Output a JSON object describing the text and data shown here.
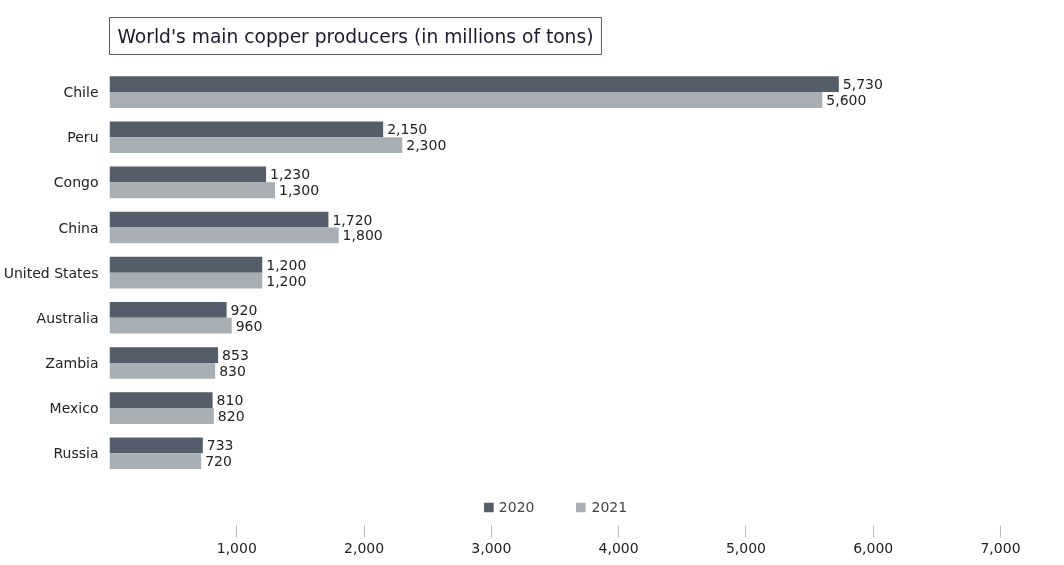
{
  "chart_data": {
    "type": "bar",
    "orientation": "horizontal",
    "title": "World's main copper producers (in millions of tons)",
    "categories": [
      "Chile",
      "Peru",
      "Congo",
      "China",
      "United States",
      "Australia",
      "Zambia",
      "Mexico",
      "Russia"
    ],
    "series": [
      {
        "name": "2020",
        "color": "#545e6b",
        "values": [
          5730,
          2150,
          1230,
          1720,
          1200,
          920,
          853,
          810,
          733
        ],
        "value_labels": [
          "5,730",
          "2,150",
          "1,230",
          "1,720",
          "1,200",
          "920",
          "853",
          "810",
          "733"
        ]
      },
      {
        "name": "2021",
        "color": "#a7aeb4",
        "values": [
          5600,
          2300,
          1300,
          1800,
          1200,
          960,
          830,
          820,
          720
        ],
        "value_labels": [
          "5,600",
          "2,300",
          "1,300",
          "1,800",
          "1,200",
          "960",
          "830",
          "820",
          "720"
        ]
      }
    ],
    "xlim": [
      0,
      7000
    ],
    "xticks": [
      {
        "value": 1000,
        "label": "1,000"
      },
      {
        "value": 2000,
        "label": "2,000"
      },
      {
        "value": 3000,
        "label": "3,000"
      },
      {
        "value": 4000,
        "label": "4,000"
      },
      {
        "value": 5000,
        "label": "5,000"
      },
      {
        "value": 6000,
        "label": "6,000"
      },
      {
        "value": 7000,
        "label": "7,000"
      }
    ],
    "grid": false,
    "legend": "bottom"
  }
}
